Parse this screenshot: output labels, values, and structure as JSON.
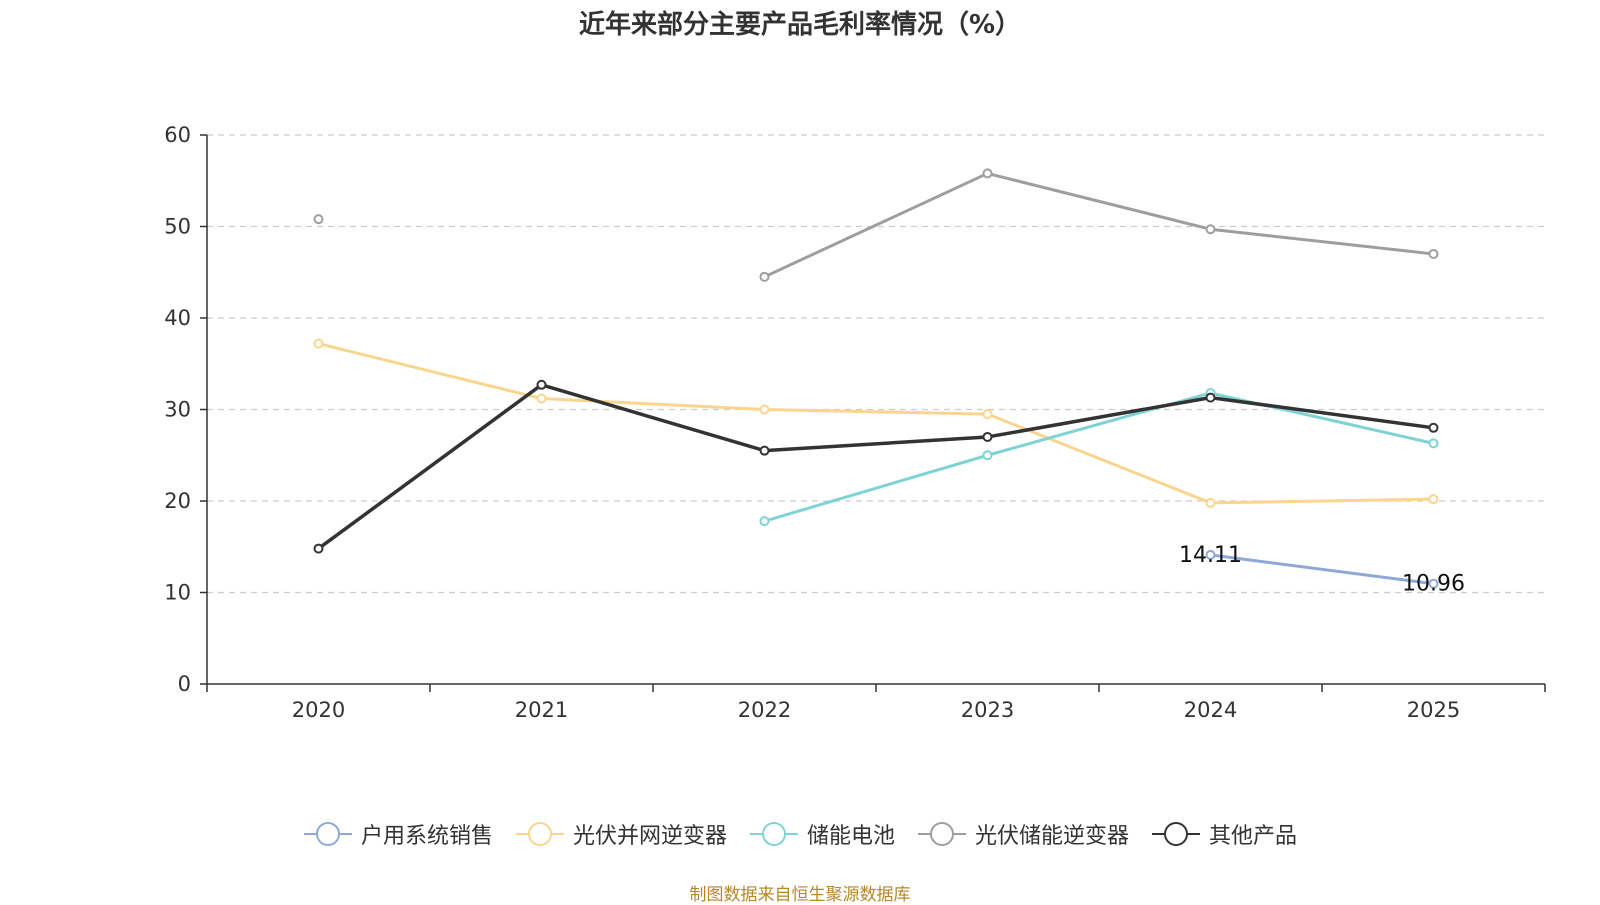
{
  "chart_data": {
    "type": "line",
    "title": "近年来部分主要产品毛利率情况（%）",
    "categories": [
      "2020",
      "2021",
      "2022",
      "2023",
      "2024",
      "2025"
    ],
    "ylim": [
      0,
      60
    ],
    "yticks": [
      0,
      10,
      20,
      30,
      40,
      50,
      60
    ],
    "grid": true,
    "legend_position": "bottom",
    "series": [
      {
        "name": "户用系统销售",
        "color": "#8fa8d8",
        "values": [
          null,
          null,
          null,
          null,
          14.11,
          10.96
        ],
        "labels": [
          "",
          "",
          "",
          "",
          "14.11",
          "10.96"
        ]
      },
      {
        "name": "光伏并网逆变器",
        "color": "#f9d58f",
        "values": [
          37.2,
          31.2,
          30.0,
          29.5,
          19.8,
          20.2
        ]
      },
      {
        "name": "储能电池",
        "color": "#7fd3d4",
        "values": [
          null,
          null,
          17.8,
          25.0,
          31.8,
          26.3
        ]
      },
      {
        "name": "光伏储能逆变器",
        "color": "#9e9e9e",
        "values": [
          50.8,
          null,
          44.5,
          55.8,
          49.7,
          47.0
        ]
      },
      {
        "name": "其他产品",
        "color": "#333333",
        "values": [
          14.8,
          32.7,
          25.5,
          27.0,
          31.3,
          28.0
        ]
      }
    ],
    "source": "制图数据来自恒生聚源数据库"
  }
}
